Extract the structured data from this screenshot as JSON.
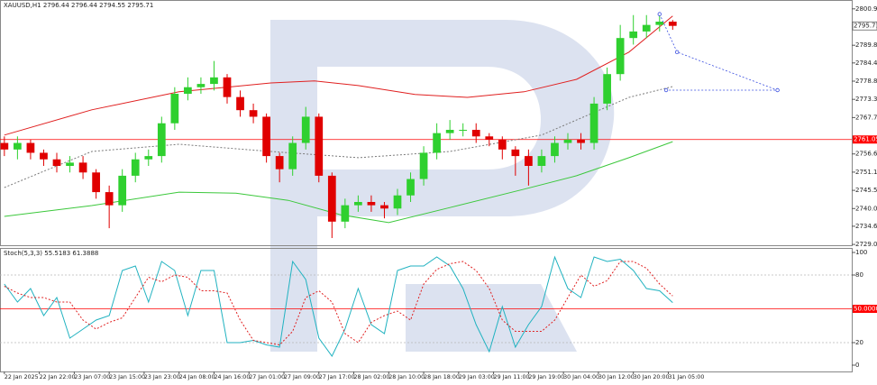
{
  "chart_data": [
    {
      "type": "candlestick",
      "title": "XAUUSD,H1  2796.44 2796.44 2794.55 2795.71",
      "up_color": "#2fd02f",
      "down_color": "#e00000",
      "xlim": [
        -1,
        194
      ],
      "ylim": [
        2728.8,
        2803.6
      ],
      "yticks": [
        {
          "value": 2800.9,
          "label": "2800.90"
        },
        {
          "value": 2789.8,
          "label": "2789.80"
        },
        {
          "value": 2784.4,
          "label": "2784.40"
        },
        2778.85,
        {
          "value": 2773.3,
          "label": "2773.30"
        },
        2767.75,
        2756.65,
        {
          "value": 2751.1,
          "label": "2751.10"
        },
        2745.55,
        {
          "value": 2740,
          "label": "2740.00"
        },
        {
          "value": 2734.6,
          "label": "2734.60"
        },
        2729.05
      ],
      "x": [
        0,
        3,
        6,
        9,
        12,
        15,
        18,
        21,
        24,
        27,
        30,
        33,
        36,
        39,
        42,
        45,
        48,
        51,
        54,
        57,
        60,
        63,
        66,
        69,
        72,
        75,
        78,
        81,
        84,
        87,
        90,
        93,
        96,
        99,
        102,
        105,
        108,
        111,
        114,
        117,
        120,
        123,
        126,
        129,
        132,
        135,
        138,
        141,
        144,
        147,
        150,
        153
      ],
      "open": [
        2760,
        2758,
        2760,
        2757,
        2755,
        2753,
        2754,
        2751,
        2745,
        2741,
        2750,
        2755,
        2756,
        2766,
        2775,
        2777,
        2778,
        2780,
        2774,
        2770,
        2768,
        2756,
        2752,
        2760,
        2768,
        2750,
        2736,
        2741,
        2742,
        2741,
        2740,
        2744,
        2749,
        2757,
        2763,
        2764,
        2764,
        2762,
        2761,
        2758,
        2756,
        2753,
        2756,
        2760,
        2761,
        2760,
        2772,
        2781,
        2792,
        2794,
        2796,
        2797
      ],
      "high": [
        2762,
        2762,
        2761,
        2758,
        2757,
        2756,
        2756,
        2752,
        2747,
        2752,
        2757,
        2758,
        2768,
        2777,
        2780,
        2780,
        2785,
        2781,
        2776,
        2772,
        2769,
        2757,
        2762,
        2771,
        2769,
        2751,
        2743,
        2744,
        2744,
        2742,
        2746,
        2751,
        2759,
        2766,
        2767,
        2766,
        2766,
        2763,
        2762,
        2759,
        2758,
        2758,
        2762,
        2763,
        2763,
        2774,
        2783,
        2796,
        2799,
        2799,
        2799,
        2797.5
      ],
      "low": [
        2756,
        2755,
        2755,
        2753,
        2751,
        2751,
        2749,
        2743,
        2734,
        2739,
        2748,
        2753,
        2754,
        2764,
        2773,
        2775,
        2776,
        2772,
        2768,
        2766,
        2754,
        2748,
        2750,
        2758,
        2748,
        2731,
        2734,
        2739,
        2739,
        2737,
        2738,
        2742,
        2747,
        2755,
        2761,
        2762,
        2760,
        2759,
        2755,
        2750,
        2747,
        2751,
        2754,
        2758,
        2758,
        2758,
        2770,
        2779,
        2790,
        2792,
        2794,
        2794.5
      ],
      "close": [
        2758,
        2760,
        2757,
        2755,
        2753,
        2754,
        2751,
        2745,
        2741,
        2750,
        2755,
        2756,
        2766,
        2775,
        2777,
        2778,
        2780,
        2774,
        2770,
        2768,
        2756,
        2752,
        2760,
        2768,
        2750,
        2736,
        2741,
        2742,
        2741,
        2740,
        2744,
        2749,
        2757,
        2763,
        2764,
        2764,
        2762,
        2761,
        2758,
        2756,
        2753,
        2756,
        2760,
        2761,
        2760,
        2772,
        2781,
        2792,
        2794,
        2796,
        2797,
        2795.71
      ],
      "lines": [
        {
          "color": "#e02020",
          "dash": "none",
          "x": [
            0,
            20,
            40,
            61,
            71,
            81,
            94,
            106,
            119,
            131,
            143,
            153
          ],
          "values": [
            2762.4,
            2770.1,
            2775.6,
            2778.3,
            2778.9,
            2777.5,
            2774.8,
            2773.9,
            2775.6,
            2779.4,
            2787.7,
            2798.7
          ]
        },
        {
          "color": "#3cc83c",
          "dash": "none",
          "x": [
            0,
            20,
            40,
            53,
            65,
            77,
            88,
            102,
            119,
            131,
            143,
            153
          ],
          "values": [
            2737.6,
            2740.9,
            2745.0,
            2744.7,
            2742.5,
            2738.1,
            2735.7,
            2740.3,
            2745.9,
            2750.0,
            2755.5,
            2760.4
          ]
        },
        {
          "color": "#7a7a7a",
          "dash": "2,2",
          "x": [
            0,
            20,
            40,
            61,
            81,
            102,
            123,
            143,
            153
          ],
          "values": [
            2746.4,
            2757.4,
            2759.6,
            2757.4,
            2755.5,
            2757.4,
            2762.4,
            2773.9,
            2777.2
          ]
        }
      ],
      "forecast": {
        "color": "#3a4ee0",
        "x": [
          150,
          154,
          177,
          151.5
        ],
        "values": [
          2799.3,
          2787.7,
          2776.1,
          2776.1
        ]
      },
      "levels": [
        {
          "value": 2761.05,
          "color": "#ff0000"
        }
      ]
    },
    {
      "type": "line",
      "title": "Stoch(5,3,3) 55.5183 61.3888",
      "xlim": [
        -1,
        194
      ],
      "ylim": [
        -5.6,
        104
      ],
      "yticks": [
        100,
        80,
        20,
        0
      ],
      "xticks": [
        {
          "value": 0,
          "label": "22 Jan 2025"
        },
        {
          "value": 8,
          "label": "22 Jan 22:00"
        },
        {
          "value": 16,
          "label": "23 Jan 07:00"
        },
        {
          "value": 24,
          "label": "23 Jan 15:00"
        },
        {
          "value": 32,
          "label": "23 Jan 23:00"
        },
        {
          "value": 40,
          "label": "24 Jan 08:00"
        },
        {
          "value": 48,
          "label": "24 Jan 16:00"
        },
        {
          "value": 56,
          "label": "27 Jan 01:00"
        },
        {
          "value": 64,
          "label": "27 Jan 09:00"
        },
        {
          "value": 72,
          "label": "27 Jan 17:00"
        },
        {
          "value": 80,
          "label": "28 Jan 02:00"
        },
        {
          "value": 88,
          "label": "28 Jan 10:00"
        },
        {
          "value": 96,
          "label": "28 Jan 18:00"
        },
        {
          "value": 104,
          "label": "29 Jan 03:00"
        },
        {
          "value": 112,
          "label": "29 Jan 11:00"
        },
        {
          "value": 120,
          "label": "29 Jan 19:00"
        },
        {
          "value": 128,
          "label": "30 Jan 04:00"
        },
        {
          "value": 136,
          "label": "30 Jan 12:00"
        },
        {
          "value": 144,
          "label": "30 Jan 20:00"
        },
        {
          "value": 152,
          "label": "31 Jan 05:00"
        }
      ],
      "x": [
        0,
        3,
        6,
        9,
        12,
        15,
        18,
        21,
        24,
        27,
        30,
        33,
        36,
        39,
        42,
        45,
        48,
        51,
        54,
        57,
        60,
        63,
        66,
        69,
        72,
        75,
        78,
        81,
        84,
        87,
        90,
        93,
        96,
        99,
        102,
        105,
        108,
        111,
        114,
        117,
        120,
        123,
        126,
        129,
        132,
        135,
        138,
        141,
        144,
        147,
        150,
        153
      ],
      "series": [
        {
          "color": "#20b2c0",
          "dash": "none",
          "values": [
            72,
            56,
            68,
            44,
            60,
            24,
            32,
            40,
            44,
            84,
            88,
            56,
            92,
            84,
            44,
            84,
            84,
            20,
            20,
            22,
            18,
            16,
            92,
            76,
            24,
            8,
            32,
            68,
            36,
            28,
            84,
            88,
            88,
            96,
            88,
            68,
            36,
            12,
            52,
            16,
            36,
            52,
            96,
            68,
            60,
            96,
            92,
            94,
            84,
            68,
            66,
            55.5183
          ]
        },
        {
          "color": "#e02020",
          "dash": "2,2",
          "values": [
            70,
            64,
            60,
            60,
            56,
            56,
            40,
            32,
            38,
            42,
            60,
            78,
            74,
            80,
            78,
            66,
            66,
            64,
            40,
            22,
            20,
            18,
            30,
            60,
            66,
            56,
            28,
            20,
            38,
            44,
            48,
            40,
            72,
            85,
            90,
            92,
            84,
            68,
            40,
            30,
            30,
            30,
            40,
            60,
            80,
            70,
            75,
            92,
            92,
            86,
            72,
            61.3888
          ]
        }
      ],
      "levels": [
        {
          "value": 80,
          "color": "#b8b8b8"
        },
        {
          "value": 50,
          "label": "50.0000",
          "color": "#ff0000"
        },
        {
          "value": 20,
          "color": "#b8b8b8"
        }
      ]
    }
  ]
}
